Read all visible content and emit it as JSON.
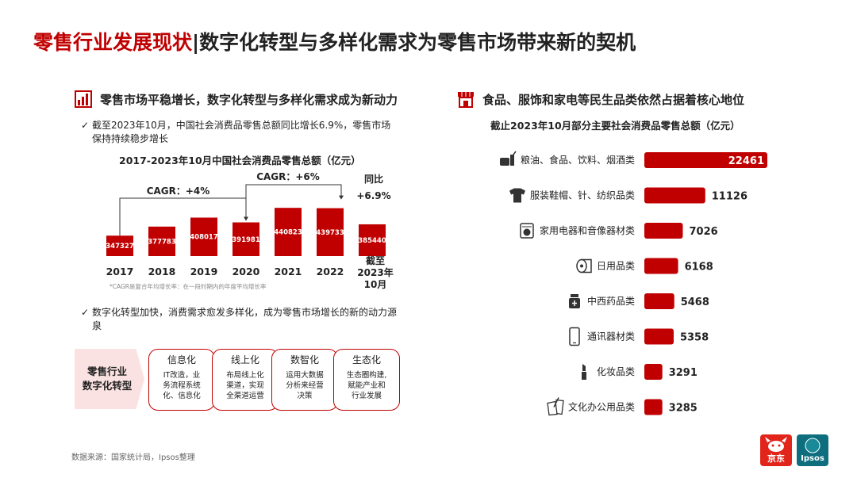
{
  "title": {
    "part1": "零售行业发展现状",
    "separator": "|",
    "part2": "数字化转型与多样化需求为零售市场带来新的契机"
  },
  "left": {
    "heading": "零售市场平稳增长，数字化转型与多样化需求成为新动力",
    "bullet1": "截至2023年10月，中国社会消费品零售总额同比增长6.9%，零售市场保持持续稳步增长",
    "bullet2": "数字化转型加快，消费需求愈发多样化，成为零售市场增长的新的动力源泉",
    "footnote": "*CAGR是复合年均增长率：在一段时期内的年度平均增长率"
  },
  "transformation": {
    "label_line1": "零售行业",
    "label_line2": "数字化转型",
    "items": [
      {
        "head": "信息化",
        "l1": "IT改造，业",
        "l2": "务流程系统",
        "l3": "化、信息化"
      },
      {
        "head": "线上化",
        "l1": "布局线上化",
        "l2": "渠道，实现",
        "l3": "全渠道运营"
      },
      {
        "head": "数智化",
        "l1": "运用大数据",
        "l2": "分析来经营",
        "l3": "决策"
      },
      {
        "head": "生态化",
        "l1": "生态圈构建,",
        "l2": "赋能产业和",
        "l3": "行业发展"
      }
    ]
  },
  "right": {
    "heading": "食品、服饰和家电等民生品类依然占据着核心地位"
  },
  "source": "数据来源：国家统计局，Ipsos整理",
  "logos": {
    "jd": "京东",
    "ipsos": "Ipsos"
  },
  "colors": {
    "accent": "#c00000",
    "bar": "#c00000",
    "light": "#fbe2e2"
  },
  "chart_data": [
    {
      "type": "bar",
      "title": "2017-2023年10月中国社会消费品零售总额（亿元）",
      "categories": [
        "2017",
        "2018",
        "2019",
        "2020",
        "2021",
        "2022",
        "截至2023年10月"
      ],
      "values": [
        347327,
        377783,
        408017,
        391981,
        440823,
        439733,
        385440
      ],
      "annotations": {
        "cagr1": "CAGR：+4%",
        "cagr2": "CAGR：+6%",
        "yoy_line1": "同比",
        "yoy_line2": "+6.9%"
      }
    },
    {
      "type": "bar",
      "orientation": "horizontal",
      "title": "截止2023年10月部分主要社会消费品零售总额（亿元）",
      "categories": [
        "粮油、食品、饮料、烟酒类",
        "服装鞋帽、针、纺织品类",
        "家用电器和音像器材类",
        "日用品类",
        "中西药品类",
        "通讯器材类",
        "化妆品类",
        "文化办公用品类"
      ],
      "values": [
        22461,
        11126,
        7026,
        6168,
        5468,
        5358,
        3291,
        3285
      ],
      "icons": [
        "food-icon",
        "clothing-icon",
        "washing-machine-icon",
        "toilet-paper-icon",
        "medicine-icon",
        "phone-icon",
        "lipstick-icon",
        "stationery-icon"
      ]
    }
  ]
}
